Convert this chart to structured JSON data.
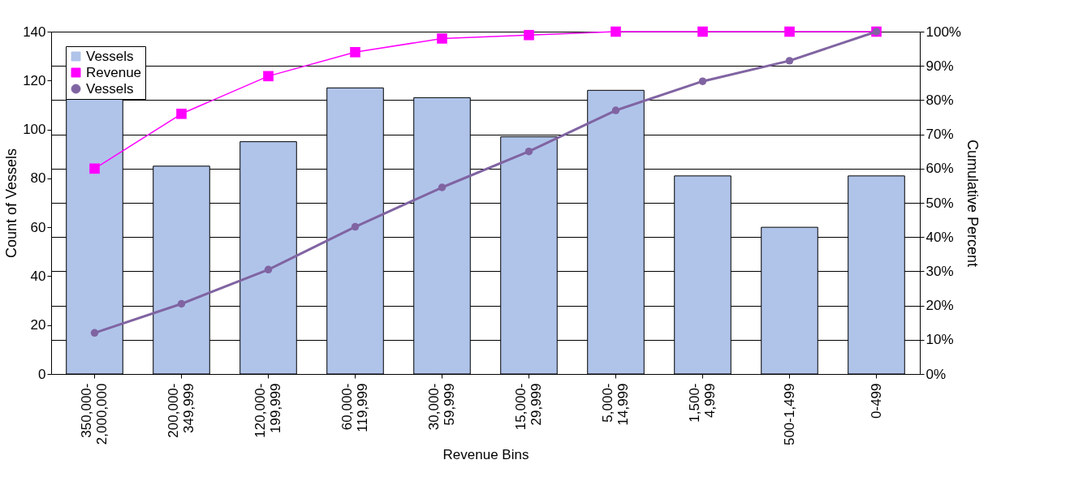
{
  "chart_data": {
    "type": "bar",
    "xlabel": "Revenue Bins",
    "ylabel": "Count of Vessels",
    "y2label": "Cumulative Percent",
    "categories": [
      "350,000-\n2,000,000",
      "200,000-\n349,999",
      "120,000-\n199,999",
      "60,000-\n119,999",
      "30,000-\n59,999",
      "15,000-\n29,999",
      "5,000-\n14,999",
      "1,500-\n4,999",
      "500-1,499",
      "0-499"
    ],
    "series": [
      {
        "name": "Vessels",
        "color": "#b0c4ea",
        "values": [
          113,
          85,
          95,
          117,
          113,
          97,
          116,
          81,
          60,
          81
        ]
      },
      {
        "name": "Revenue",
        "type": "line",
        "axis": "y2",
        "color": "#ff00ff",
        "marker": "square",
        "values": [
          60,
          76,
          87,
          94,
          98,
          99,
          100,
          100,
          100,
          100
        ]
      },
      {
        "name": "Vessels",
        "type": "line",
        "axis": "y2",
        "color": "#8064a2",
        "marker": "circle",
        "values": [
          12,
          20.5,
          30.5,
          43,
          54.5,
          65,
          77,
          85.5,
          91.5,
          100
        ]
      }
    ],
    "ylim": [
      0,
      140
    ],
    "yticks": [
      0,
      20,
      40,
      60,
      80,
      100,
      120,
      140
    ],
    "y2lim": [
      0,
      100
    ],
    "y2ticks": [
      {
        "value": 0,
        "label": "0%"
      },
      {
        "value": 10,
        "label": "10%"
      },
      {
        "value": 20,
        "label": "20%"
      },
      {
        "value": 30,
        "label": "30%"
      },
      {
        "value": 40,
        "label": "40%"
      },
      {
        "value": 50,
        "label": "50%"
      },
      {
        "value": 60,
        "label": "60%"
      },
      {
        "value": 70,
        "label": "70%"
      },
      {
        "value": 80,
        "label": "80%"
      },
      {
        "value": 90,
        "label": "90%"
      },
      {
        "value": 100,
        "label": "100%"
      }
    ],
    "grid": "y2",
    "legend": "top left"
  }
}
